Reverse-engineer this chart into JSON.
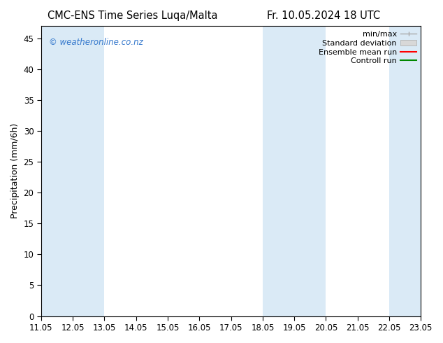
{
  "title_left": "CMC-ENS Time Series Luqa/Malta",
  "title_right": "Fr. 10.05.2024 18 UTC",
  "ylabel": "Precipitation (mm/6h)",
  "ylim": [
    0,
    47
  ],
  "yticks": [
    0,
    5,
    10,
    15,
    20,
    25,
    30,
    35,
    40,
    45
  ],
  "x_start": 0,
  "x_end": 12,
  "xtick_labels": [
    "11.05",
    "12.05",
    "13.05",
    "14.05",
    "15.05",
    "16.05",
    "17.05",
    "18.05",
    "19.05",
    "20.05",
    "21.05",
    "22.05",
    "23.05"
  ],
  "xtick_positions": [
    0,
    1,
    2,
    3,
    4,
    5,
    6,
    7,
    8,
    9,
    10,
    11,
    12
  ],
  "shaded_bands": [
    [
      0,
      1
    ],
    [
      1,
      2
    ],
    [
      7,
      8
    ],
    [
      8,
      9
    ],
    [
      11,
      12
    ]
  ],
  "shade_color": "#daeaf6",
  "background_color": "#ffffff",
  "plot_bg_color": "#ffffff",
  "legend_labels": [
    "min/max",
    "Standard deviation",
    "Ensemble mean run",
    "Controll run"
  ],
  "legend_colors": [
    "#aaaaaa",
    "#cccccc",
    "#ff0000",
    "#008800"
  ],
  "watermark_text": "© weatheronline.co.nz",
  "watermark_color": "#3377cc",
  "title_fontsize": 10.5,
  "ylabel_fontsize": 9,
  "tick_fontsize": 8.5,
  "legend_fontsize": 8
}
